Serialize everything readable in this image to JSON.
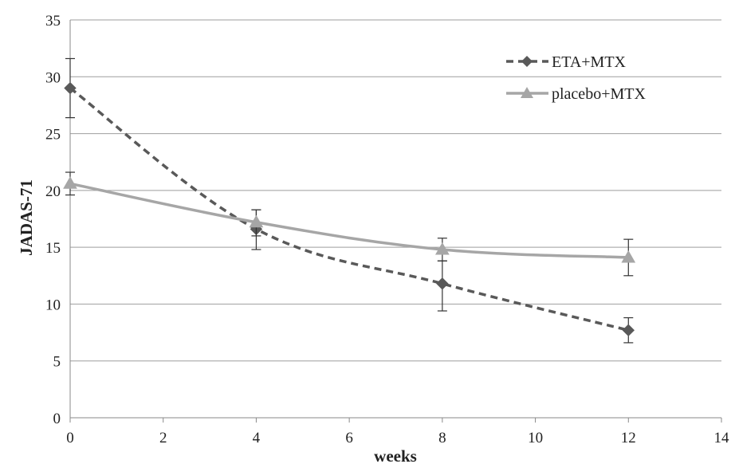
{
  "chart_data": {
    "type": "line",
    "title": "",
    "xlabel": "weeks",
    "ylabel": "JADAS-71",
    "xlim": [
      0,
      14
    ],
    "ylim": [
      0,
      35
    ],
    "x_ticks": [
      "0",
      "2",
      "4",
      "6",
      "8",
      "10",
      "12",
      "14"
    ],
    "y_ticks": [
      "0",
      "5",
      "10",
      "15",
      "20",
      "25",
      "30",
      "35"
    ],
    "grid": "horizontal",
    "legend_position": "top-right",
    "series": [
      {
        "name": "ETA+MTX",
        "color": "#595959",
        "line_style": "dashed",
        "marker": "diamond",
        "x": [
          0,
          4,
          8,
          12
        ],
        "y": [
          29.0,
          16.6,
          11.8,
          7.7
        ],
        "error_low": [
          26.4,
          14.8,
          9.4,
          6.6
        ],
        "error_high": [
          31.6,
          18.3,
          13.8,
          8.8
        ]
      },
      {
        "name": "placebo+MTX",
        "color": "#a6a6a6",
        "line_style": "solid",
        "marker": "triangle",
        "x": [
          0,
          4,
          8,
          12
        ],
        "y": [
          20.6,
          17.2,
          14.8,
          14.1
        ],
        "error_low": [
          19.6,
          16.0,
          13.8,
          12.5
        ],
        "error_high": [
          21.6,
          18.3,
          15.8,
          15.7
        ]
      }
    ]
  }
}
